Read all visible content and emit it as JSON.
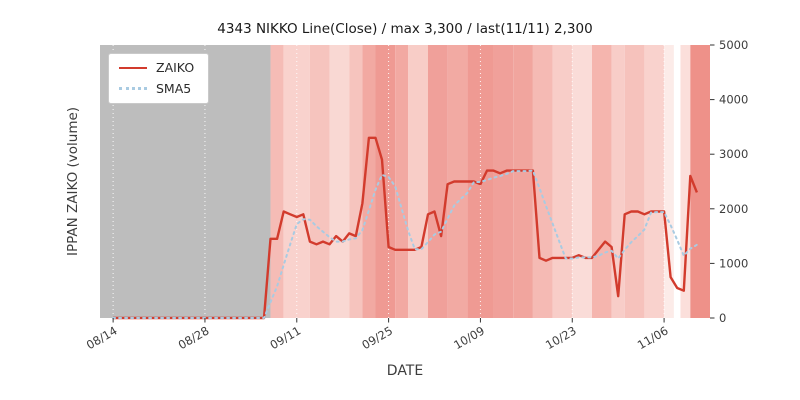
{
  "figure": {
    "title": "4343 NIKKO Line(Close) / max 3,300 / last(11/11) 2,300",
    "xlabel": "DATE",
    "ylabel": "IPPAN ZAIKO (volume)"
  },
  "legend": {
    "position": "upper left",
    "items": [
      {
        "label": "ZAIKO",
        "color": "#d23b2d",
        "style": "solid"
      },
      {
        "label": "SMA5",
        "color": "#a9cbe2",
        "style": "dotted"
      }
    ]
  },
  "chart_data": {
    "type": "line",
    "title": "4343 NIKKO Line(Close) / max 3,300 / last(11/11) 2,300",
    "xlabel": "DATE",
    "ylabel": "IPPAN ZAIKO (volume)",
    "ylim": [
      0,
      5000
    ],
    "y_ticks": [
      0,
      1000,
      2000,
      3000,
      4000,
      5000
    ],
    "x_index_range": [
      -2,
      91
    ],
    "x_ticks": [
      {
        "index": 0,
        "label": "08/14"
      },
      {
        "index": 14,
        "label": "08/28"
      },
      {
        "index": 28,
        "label": "09/11"
      },
      {
        "index": 42,
        "label": "09/25"
      },
      {
        "index": 56,
        "label": "10/09"
      },
      {
        "index": 70,
        "label": "10/23"
      },
      {
        "index": 84,
        "label": "11/06"
      }
    ],
    "max_annotation": 3300,
    "last_annotation": {
      "date": "11/11",
      "value": 2300
    },
    "series": [
      {
        "name": "ZAIKO",
        "color": "#d23b2d",
        "style": "solid",
        "values": [
          0,
          0,
          0,
          0,
          0,
          0,
          0,
          0,
          0,
          0,
          0,
          0,
          0,
          0,
          0,
          0,
          0,
          0,
          0,
          0,
          0,
          0,
          0,
          0,
          1450,
          1450,
          1950,
          1900,
          1850,
          1900,
          1400,
          1350,
          1400,
          1350,
          1500,
          1400,
          1550,
          1500,
          2100,
          3300,
          3300,
          2900,
          1300,
          1250,
          1250,
          1250,
          1250,
          1300,
          1900,
          1950,
          1500,
          2450,
          2500,
          2500,
          2500,
          2500,
          2450,
          2700,
          2700,
          2650,
          2700,
          2700,
          2700,
          2700,
          2700,
          1100,
          1050,
          1100,
          1100,
          1100,
          1100,
          1150,
          1100,
          1100,
          1250,
          1400,
          1300,
          400,
          1900,
          1950,
          1950,
          1900,
          1950,
          1950,
          1950,
          750,
          550,
          500,
          2600,
          2300
        ]
      },
      {
        "name": "SMA5",
        "color": "#a9cbe2",
        "style": "dotted",
        "values": [
          0,
          0,
          0,
          0,
          0,
          0,
          0,
          0,
          0,
          0,
          0,
          0,
          0,
          0,
          0,
          0,
          0,
          0,
          0,
          0,
          0,
          0,
          0,
          0,
          290,
          580,
          970,
          1350,
          1720,
          1810,
          1800,
          1680,
          1580,
          1480,
          1400,
          1400,
          1440,
          1460,
          1610,
          1970,
          2350,
          2620,
          2580,
          2410,
          2000,
          1590,
          1260,
          1260,
          1390,
          1530,
          1580,
          1820,
          2060,
          2180,
          2290,
          2490,
          2490,
          2530,
          2570,
          2600,
          2640,
          2690,
          2690,
          2690,
          2700,
          2380,
          2050,
          1730,
          1410,
          1090,
          1090,
          1110,
          1110,
          1110,
          1140,
          1200,
          1230,
          1090,
          1250,
          1390,
          1500,
          1620,
          1930,
          1940,
          1940,
          1700,
          1430,
          1140,
          1270,
          1340
        ]
      }
    ],
    "background_bands": [
      {
        "from": -2,
        "to": 24,
        "color": "#bdbdbd"
      },
      {
        "from": 24,
        "to": 26,
        "color": "#f5bcb6"
      },
      {
        "from": 26,
        "to": 30,
        "color": "#f9d2cd"
      },
      {
        "from": 30,
        "to": 33,
        "color": "#f6c4be"
      },
      {
        "from": 33,
        "to": 36,
        "color": "#f9d8d3"
      },
      {
        "from": 36,
        "to": 38,
        "color": "#f6c4be"
      },
      {
        "from": 38,
        "to": 40,
        "color": "#f2a9a2"
      },
      {
        "from": 40,
        "to": 43,
        "color": "#ef9a93"
      },
      {
        "from": 43,
        "to": 45,
        "color": "#f2a9a2"
      },
      {
        "from": 45,
        "to": 48,
        "color": "#f8cdc7"
      },
      {
        "from": 48,
        "to": 51,
        "color": "#f0a09a"
      },
      {
        "from": 51,
        "to": 54,
        "color": "#f2aaa3"
      },
      {
        "from": 54,
        "to": 58,
        "color": "#ef9a93"
      },
      {
        "from": 58,
        "to": 61,
        "color": "#f0a09a"
      },
      {
        "from": 61,
        "to": 64,
        "color": "#f1a59e"
      },
      {
        "from": 64,
        "to": 67,
        "color": "#f5bab4"
      },
      {
        "from": 67,
        "to": 70,
        "color": "#f8cdc8"
      },
      {
        "from": 70,
        "to": 73,
        "color": "#fadcd8"
      },
      {
        "from": 73,
        "to": 76,
        "color": "#f5b5ae"
      },
      {
        "from": 76,
        "to": 78,
        "color": "#f8cdc8"
      },
      {
        "from": 78,
        "to": 81,
        "color": "#f6c2bc"
      },
      {
        "from": 81,
        "to": 84,
        "color": "#f9d2cd"
      },
      {
        "from": 84,
        "to": 85.5,
        "color": "#fcebe8"
      },
      {
        "from": 85.5,
        "to": 86.5,
        "color": "#ffffff"
      },
      {
        "from": 86.5,
        "to": 88,
        "color": "#fbdfdb"
      },
      {
        "from": 88,
        "to": 91,
        "color": "#ee9189"
      }
    ],
    "grid": {
      "vertical_at_ticks": true,
      "color": "#ffffff",
      "style": "dotted"
    }
  }
}
